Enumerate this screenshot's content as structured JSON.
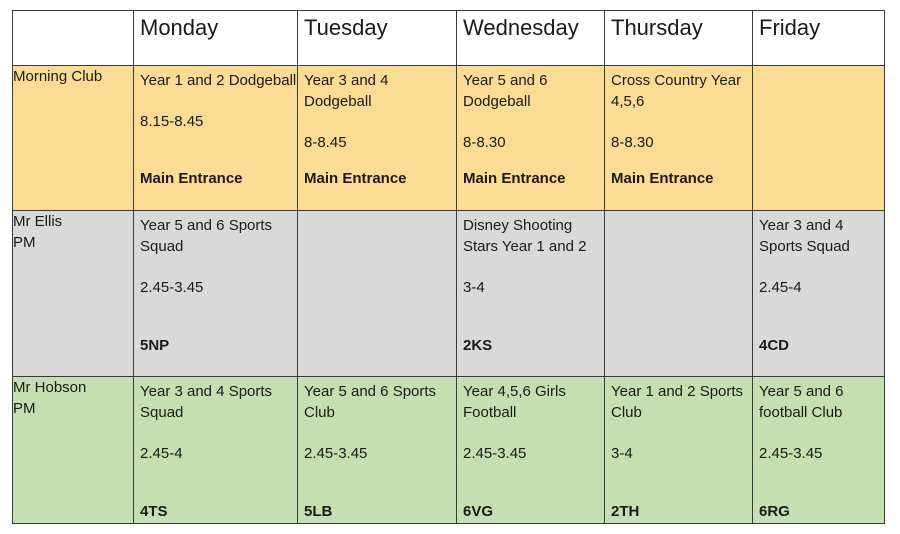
{
  "days": [
    "Monday",
    "Tuesday",
    "Wednesday",
    "Thursday",
    "Friday"
  ],
  "rows": [
    {
      "label": "Morning Club",
      "slots": [
        {
          "activity": "Year 1 and 2 Dodgeball",
          "time": "8.15-8.45",
          "place": "Main Entrance"
        },
        {
          "activity": "Year 3 and 4 Dodgeball",
          "time": "8-8.45",
          "place": "Main Entrance"
        },
        {
          "activity": "Year 5 and 6 Dodgeball",
          "time": "8-8.30",
          "place": "Main Entrance"
        },
        {
          "activity": "Cross Country Year 4,5,6",
          "time": "8-8.30",
          "place": "Main Entrance"
        },
        {
          "activity": "",
          "time": "",
          "place": ""
        }
      ]
    },
    {
      "label": "Mr Ellis PM",
      "slots": [
        {
          "activity": "Year 5 and 6 Sports Squad",
          "time": "2.45-3.45",
          "place": "5NP"
        },
        {
          "activity": "",
          "time": "",
          "place": ""
        },
        {
          "activity": "Disney Shooting Stars Year 1 and 2",
          "time": "3-4",
          "place": "2KS"
        },
        {
          "activity": "",
          "time": "",
          "place": ""
        },
        {
          "activity": "Year 3 and 4 Sports Squad",
          "time": "2.45-4",
          "place": "4CD"
        }
      ]
    },
    {
      "label": "Mr Hobson PM",
      "slots": [
        {
          "activity": "Year 3 and 4 Sports Squad",
          "time": "2.45-4",
          "place": "4TS"
        },
        {
          "activity": "Year 5 and 6 Sports Club",
          "time": "2.45-3.45",
          "place": "5LB"
        },
        {
          "activity": "Year 4,5,6 Girls Football",
          "time": "2.45-3.45",
          "place": "6VG"
        },
        {
          "activity": "Year 1 and 2 Sports Club",
          "time": "3-4",
          "place": "2TH"
        },
        {
          "activity": "Year 5 and 6 football Club",
          "time": "2.45-3.45",
          "place": "6RG"
        }
      ]
    }
  ]
}
